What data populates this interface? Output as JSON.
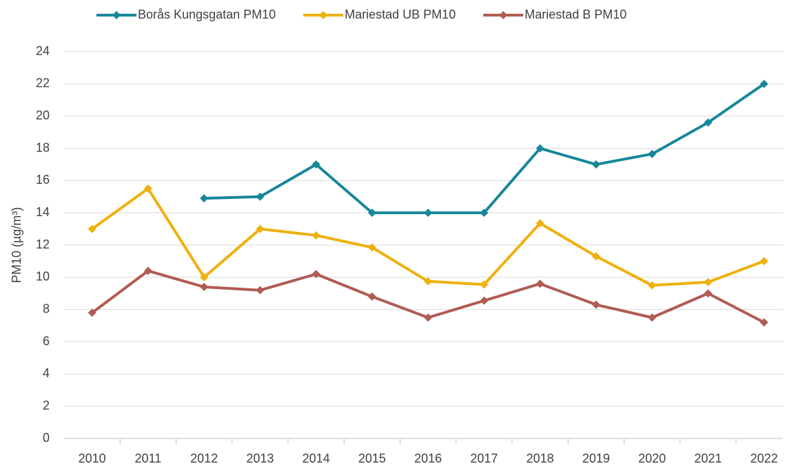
{
  "chart_data": {
    "type": "line",
    "y_label": "PM10 (µg/m³)",
    "categories": [
      "2010",
      "2011",
      "2012",
      "2013",
      "2014",
      "2015",
      "2016",
      "2017",
      "2018",
      "2019",
      "2020",
      "2021",
      "2022"
    ],
    "series": [
      {
        "name": "Borås Kungsgatan PM10",
        "color": "#17879a",
        "values": [
          null,
          null,
          14.9,
          15.0,
          17.0,
          14.0,
          14.0,
          14.0,
          18.0,
          17.0,
          17.65,
          19.6,
          22.0
        ]
      },
      {
        "name": "Mariestad UB PM10",
        "color": "#efb00c",
        "values": [
          13.0,
          15.5,
          10.0,
          13.0,
          12.6,
          11.85,
          9.75,
          9.55,
          13.35,
          11.3,
          9.5,
          9.7,
          11.0
        ]
      },
      {
        "name": "Mariestad B PM10",
        "color": "#b05b53",
        "values": [
          7.8,
          10.4,
          9.4,
          9.2,
          10.2,
          8.8,
          7.5,
          8.55,
          9.6,
          8.3,
          7.5,
          9.0,
          7.2
        ]
      }
    ],
    "ylim": [
      0,
      24
    ],
    "yticks": [
      0,
      2,
      4,
      6,
      8,
      10,
      12,
      14,
      16,
      18,
      20,
      22,
      24
    ],
    "grid": true,
    "legend": "top"
  }
}
